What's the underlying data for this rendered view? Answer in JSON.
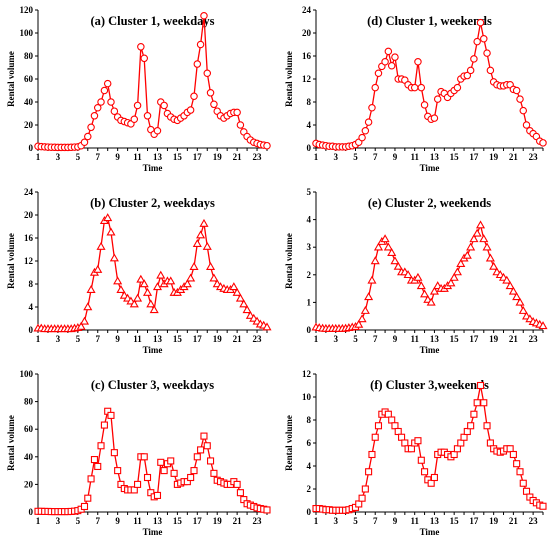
{
  "chart_data": [
    {
      "id": "a",
      "type": "line",
      "title": "(a) Cluster  1, weekdays",
      "xlabel": "Time",
      "ylabel": "Rental volume",
      "ylim": [
        0,
        120
      ],
      "yticks": [
        "0",
        "20",
        "40",
        "60",
        "80",
        "100",
        "120"
      ],
      "xlim": [
        1,
        24
      ],
      "xticks": [
        "1",
        "3",
        "5",
        "7",
        "9",
        "11",
        "13",
        "15",
        "17",
        "19",
        "21",
        "23"
      ],
      "marker": "circle",
      "color": "#ff0000",
      "grid": false,
      "x": [
        1.0,
        1.33,
        1.67,
        2.0,
        2.33,
        2.67,
        3.0,
        3.33,
        3.67,
        4.0,
        4.33,
        4.67,
        5.0,
        5.33,
        5.67,
        6.0,
        6.33,
        6.67,
        7.0,
        7.33,
        7.67,
        8.0,
        8.33,
        8.67,
        9.0,
        9.33,
        9.67,
        10.0,
        10.33,
        10.67,
        11.0,
        11.33,
        11.67,
        12.0,
        12.33,
        12.67,
        13.0,
        13.33,
        13.67,
        14.0,
        14.33,
        14.67,
        15.0,
        15.33,
        15.67,
        16.0,
        16.33,
        16.67,
        17.0,
        17.33,
        17.67,
        18.0,
        18.33,
        18.67,
        19.0,
        19.33,
        19.67,
        20.0,
        20.33,
        20.67,
        21.0,
        21.33,
        21.67,
        22.0,
        22.33,
        22.67,
        23.0,
        23.33,
        23.67,
        24.0
      ],
      "y": [
        1.5,
        1.2,
        1.0,
        0.8,
        0.7,
        0.6,
        0.5,
        0.5,
        0.5,
        0.5,
        0.6,
        0.8,
        1.0,
        2.0,
        5.0,
        10.0,
        18.0,
        28.0,
        35.0,
        40.0,
        50.0,
        56.0,
        40.0,
        32.0,
        27.0,
        24.0,
        23.0,
        22.0,
        21.0,
        25.0,
        37.0,
        88.0,
        78.0,
        28.0,
        16.0,
        12.0,
        15.0,
        40.0,
        37.0,
        30.0,
        27.0,
        25.0,
        24.0,
        26.0,
        28.0,
        31.0,
        33.0,
        45.0,
        73.0,
        90.0,
        115.0,
        65.0,
        48.0,
        38.0,
        32.0,
        28.0,
        26.0,
        28.0,
        30.0,
        31.0,
        31.0,
        20.0,
        14.0,
        10.0,
        7.0,
        5.0,
        4.0,
        3.0,
        2.5,
        2.0
      ]
    },
    {
      "id": "d",
      "type": "line",
      "title": "(d) Cluster  1, weekends",
      "xlabel": "Time",
      "ylabel": "Rental volume",
      "ylim": [
        0,
        24
      ],
      "yticks": [
        "0",
        "4",
        "8",
        "12",
        "16",
        "20",
        "24"
      ],
      "xlim": [
        1,
        24
      ],
      "xticks": [
        "1",
        "3",
        "5",
        "7",
        "9",
        "11",
        "13",
        "15",
        "17",
        "19",
        "21",
        "23"
      ],
      "marker": "circle",
      "color": "#ff0000",
      "grid": false,
      "x": [
        1.0,
        1.33,
        1.67,
        2.0,
        2.33,
        2.67,
        3.0,
        3.33,
        3.67,
        4.0,
        4.33,
        4.67,
        5.0,
        5.33,
        5.67,
        6.0,
        6.33,
        6.67,
        7.0,
        7.33,
        7.67,
        8.0,
        8.33,
        8.67,
        9.0,
        9.33,
        9.67,
        10.0,
        10.33,
        10.67,
        11.0,
        11.33,
        11.67,
        12.0,
        12.33,
        12.67,
        13.0,
        13.33,
        13.67,
        14.0,
        14.33,
        14.67,
        15.0,
        15.33,
        15.67,
        16.0,
        16.33,
        16.67,
        17.0,
        17.33,
        17.67,
        18.0,
        18.33,
        18.67,
        19.0,
        19.33,
        19.67,
        20.0,
        20.33,
        20.67,
        21.0,
        21.33,
        21.67,
        22.0,
        22.33,
        22.67,
        23.0,
        23.33,
        23.67,
        24.0
      ],
      "y": [
        0.8,
        0.6,
        0.5,
        0.4,
        0.3,
        0.3,
        0.2,
        0.2,
        0.2,
        0.2,
        0.3,
        0.4,
        0.6,
        1.0,
        1.8,
        3.0,
        4.5,
        7.0,
        10.5,
        13.0,
        14.2,
        15.0,
        16.8,
        14.3,
        15.8,
        12.0,
        12.0,
        11.8,
        11.0,
        10.5,
        10.5,
        15.0,
        10.5,
        7.5,
        5.5,
        5.0,
        5.2,
        8.5,
        9.8,
        9.5,
        8.8,
        9.5,
        10.0,
        10.5,
        12.0,
        12.5,
        12.6,
        13.5,
        15.5,
        18.5,
        21.8,
        19.0,
        16.5,
        13.5,
        11.5,
        11.0,
        10.8,
        10.8,
        11.0,
        11.0,
        10.2,
        10.0,
        8.5,
        6.5,
        4.0,
        3.0,
        2.5,
        2.0,
        1.2,
        0.9
      ]
    },
    {
      "id": "b",
      "type": "line",
      "title": "(b) Cluster  2, weekdays",
      "xlabel": "Time",
      "ylabel": "Rental volume",
      "ylim": [
        0,
        24
      ],
      "yticks": [
        "0",
        "4",
        "8",
        "12",
        "16",
        "20",
        "24"
      ],
      "xlim": [
        1,
        24
      ],
      "xticks": [
        "1",
        "3",
        "5",
        "7",
        "9",
        "11",
        "13",
        "15",
        "17",
        "19",
        "21",
        "23"
      ],
      "marker": "triangle",
      "color": "#ff0000",
      "grid": false,
      "x": [
        1.0,
        1.33,
        1.67,
        2.0,
        2.33,
        2.67,
        3.0,
        3.33,
        3.67,
        4.0,
        4.33,
        4.67,
        5.0,
        5.33,
        5.67,
        6.0,
        6.33,
        6.67,
        7.0,
        7.33,
        7.67,
        8.0,
        8.33,
        8.67,
        9.0,
        9.33,
        9.67,
        10.0,
        10.33,
        10.67,
        11.0,
        11.33,
        11.67,
        12.0,
        12.33,
        12.67,
        13.0,
        13.33,
        13.67,
        14.0,
        14.33,
        14.67,
        15.0,
        15.33,
        15.67,
        16.0,
        16.33,
        16.67,
        17.0,
        17.33,
        17.67,
        18.0,
        18.33,
        18.67,
        19.0,
        19.33,
        19.67,
        20.0,
        20.33,
        20.67,
        21.0,
        21.33,
        21.67,
        22.0,
        22.33,
        22.67,
        23.0,
        23.33,
        23.67,
        24.0
      ],
      "y": [
        0.3,
        0.3,
        0.2,
        0.2,
        0.2,
        0.2,
        0.2,
        0.2,
        0.2,
        0.2,
        0.2,
        0.3,
        0.4,
        0.6,
        1.5,
        4.0,
        7.0,
        10.0,
        10.5,
        14.5,
        19.0,
        19.5,
        17.0,
        12.5,
        8.5,
        7.0,
        6.0,
        5.5,
        5.0,
        4.5,
        5.5,
        8.8,
        8.0,
        6.5,
        4.5,
        3.5,
        7.5,
        9.5,
        8.0,
        8.5,
        8.5,
        6.5,
        6.5,
        7.0,
        7.5,
        8.0,
        9.0,
        11.0,
        15.0,
        16.5,
        18.5,
        14.5,
        11.0,
        9.0,
        8.0,
        7.5,
        7.2,
        7.0,
        7.0,
        7.5,
        6.5,
        5.5,
        4.5,
        3.5,
        2.5,
        2.0,
        1.5,
        1.0,
        0.8,
        0.5
      ]
    },
    {
      "id": "e",
      "type": "line",
      "title": "(e) Cluster  2, weekends",
      "xlabel": "Time",
      "ylabel": "Rental volume",
      "ylim": [
        0,
        5
      ],
      "yticks": [
        "0",
        "1",
        "2",
        "3",
        "4",
        "5"
      ],
      "xlim": [
        1,
        24
      ],
      "xticks": [
        "1",
        "3",
        "5",
        "7",
        "9",
        "11",
        "13",
        "15",
        "17",
        "19",
        "21",
        "23"
      ],
      "marker": "triangle",
      "color": "#ff0000",
      "grid": false,
      "x": [
        1.0,
        1.33,
        1.67,
        2.0,
        2.33,
        2.67,
        3.0,
        3.33,
        3.67,
        4.0,
        4.33,
        4.67,
        5.0,
        5.33,
        5.67,
        6.0,
        6.33,
        6.67,
        7.0,
        7.33,
        7.67,
        8.0,
        8.33,
        8.67,
        9.0,
        9.33,
        9.67,
        10.0,
        10.33,
        10.67,
        11.0,
        11.33,
        11.67,
        12.0,
        12.33,
        12.67,
        13.0,
        13.33,
        13.67,
        14.0,
        14.33,
        14.67,
        15.0,
        15.33,
        15.67,
        16.0,
        16.33,
        16.67,
        17.0,
        17.33,
        17.67,
        18.0,
        18.33,
        18.67,
        19.0,
        19.33,
        19.67,
        20.0,
        20.33,
        20.67,
        21.0,
        21.33,
        21.67,
        22.0,
        22.33,
        22.67,
        23.0,
        23.33,
        23.67,
        24.0
      ],
      "y": [
        0.1,
        0.08,
        0.06,
        0.05,
        0.05,
        0.05,
        0.05,
        0.05,
        0.05,
        0.06,
        0.08,
        0.1,
        0.12,
        0.2,
        0.4,
        0.7,
        1.2,
        1.8,
        2.5,
        3.0,
        3.2,
        3.3,
        3.0,
        2.8,
        2.5,
        2.3,
        2.1,
        2.1,
        2.0,
        1.8,
        1.8,
        1.9,
        1.6,
        1.3,
        1.1,
        1.0,
        1.4,
        1.6,
        1.5,
        1.5,
        1.6,
        1.7,
        1.9,
        2.1,
        2.4,
        2.6,
        2.7,
        3.0,
        3.3,
        3.5,
        3.8,
        3.3,
        3.0,
        2.6,
        2.3,
        2.1,
        2.0,
        1.9,
        1.8,
        1.6,
        1.4,
        1.2,
        1.0,
        0.7,
        0.5,
        0.4,
        0.3,
        0.25,
        0.2,
        0.15
      ]
    },
    {
      "id": "c",
      "type": "line",
      "title": "(c) Cluster  3, weekdays",
      "xlabel": "Time",
      "ylabel": "Rental volume",
      "ylim": [
        0,
        100
      ],
      "yticks": [
        "0",
        "20",
        "40",
        "60",
        "80",
        "100"
      ],
      "xlim": [
        1,
        24
      ],
      "xticks": [
        "1",
        "3",
        "5",
        "7",
        "9",
        "11",
        "13",
        "15",
        "17",
        "19",
        "21",
        "23"
      ],
      "marker": "square",
      "color": "#ff0000",
      "grid": false,
      "x": [
        1.0,
        1.33,
        1.67,
        2.0,
        2.33,
        2.67,
        3.0,
        3.33,
        3.67,
        4.0,
        4.33,
        4.67,
        5.0,
        5.33,
        5.67,
        6.0,
        6.33,
        6.67,
        7.0,
        7.33,
        7.67,
        8.0,
        8.33,
        8.67,
        9.0,
        9.33,
        9.67,
        10.0,
        10.33,
        10.67,
        11.0,
        11.33,
        11.67,
        12.0,
        12.33,
        12.67,
        13.0,
        13.33,
        13.67,
        14.0,
        14.33,
        14.67,
        15.0,
        15.33,
        15.67,
        16.0,
        16.33,
        16.67,
        17.0,
        17.33,
        17.67,
        18.0,
        18.33,
        18.67,
        19.0,
        19.33,
        19.67,
        20.0,
        20.33,
        20.67,
        21.0,
        21.33,
        21.67,
        22.0,
        22.33,
        22.67,
        23.0,
        23.33,
        23.67,
        24.0
      ],
      "y": [
        0.5,
        0.5,
        0.4,
        0.4,
        0.3,
        0.3,
        0.3,
        0.3,
        0.3,
        0.3,
        0.4,
        0.6,
        1.0,
        2.0,
        4.0,
        10.0,
        24.0,
        38.0,
        33.0,
        48.0,
        63.0,
        73.0,
        70.0,
        43.0,
        30.0,
        20.0,
        17.0,
        16.0,
        16.0,
        16.0,
        20.0,
        40.0,
        40.0,
        25.0,
        14.0,
        11.0,
        12.0,
        36.0,
        30.0,
        35.0,
        37.0,
        28.0,
        20.0,
        21.0,
        22.0,
        22.0,
        25.0,
        30.0,
        40.0,
        45.0,
        55.0,
        48.0,
        37.0,
        28.0,
        23.0,
        22.0,
        21.0,
        20.0,
        20.0,
        22.0,
        20.0,
        14.0,
        9.0,
        6.0,
        5.0,
        4.0,
        3.0,
        2.5,
        2.0,
        1.5
      ]
    },
    {
      "id": "f",
      "type": "line",
      "title": "(f) Cluster  3,weekends",
      "xlabel": "Time",
      "ylabel": "Rental volume",
      "ylim": [
        0,
        12
      ],
      "yticks": [
        "0",
        "2",
        "4",
        "6",
        "8",
        "10",
        "12"
      ],
      "xlim": [
        1,
        24
      ],
      "xticks": [
        "1",
        "3",
        "5",
        "7",
        "9",
        "11",
        "13",
        "15",
        "17",
        "19",
        "21",
        "23"
      ],
      "marker": "square",
      "color": "#ff0000",
      "grid": false,
      "x": [
        1.0,
        1.33,
        1.67,
        2.0,
        2.33,
        2.67,
        3.0,
        3.33,
        3.67,
        4.0,
        4.33,
        4.67,
        5.0,
        5.33,
        5.67,
        6.0,
        6.33,
        6.67,
        7.0,
        7.33,
        7.67,
        8.0,
        8.33,
        8.67,
        9.0,
        9.33,
        9.67,
        10.0,
        10.33,
        10.67,
        11.0,
        11.33,
        11.67,
        12.0,
        12.33,
        12.67,
        13.0,
        13.33,
        13.67,
        14.0,
        14.33,
        14.67,
        15.0,
        15.33,
        15.67,
        16.0,
        16.33,
        16.67,
        17.0,
        17.33,
        17.67,
        18.0,
        18.33,
        18.67,
        19.0,
        19.33,
        19.67,
        20.0,
        20.33,
        20.67,
        21.0,
        21.33,
        21.67,
        22.0,
        22.33,
        22.67,
        23.0,
        23.33,
        23.67,
        24.0
      ],
      "y": [
        0.3,
        0.3,
        0.25,
        0.2,
        0.2,
        0.15,
        0.15,
        0.15,
        0.15,
        0.15,
        0.2,
        0.3,
        0.4,
        0.7,
        1.2,
        2.0,
        3.5,
        5.0,
        6.5,
        7.5,
        8.5,
        8.7,
        8.5,
        8.0,
        7.5,
        7.0,
        6.5,
        6.0,
        5.5,
        5.5,
        6.0,
        6.2,
        4.5,
        3.5,
        2.8,
        2.5,
        3.0,
        5.0,
        5.2,
        5.2,
        5.0,
        4.8,
        5.0,
        5.5,
        6.0,
        6.5,
        7.0,
        7.5,
        8.5,
        9.5,
        11.0,
        9.5,
        7.5,
        6.0,
        5.5,
        5.3,
        5.2,
        5.3,
        5.5,
        5.5,
        5.0,
        4.2,
        3.5,
        2.5,
        1.8,
        1.3,
        1.0,
        0.8,
        0.6,
        0.5
      ]
    }
  ]
}
